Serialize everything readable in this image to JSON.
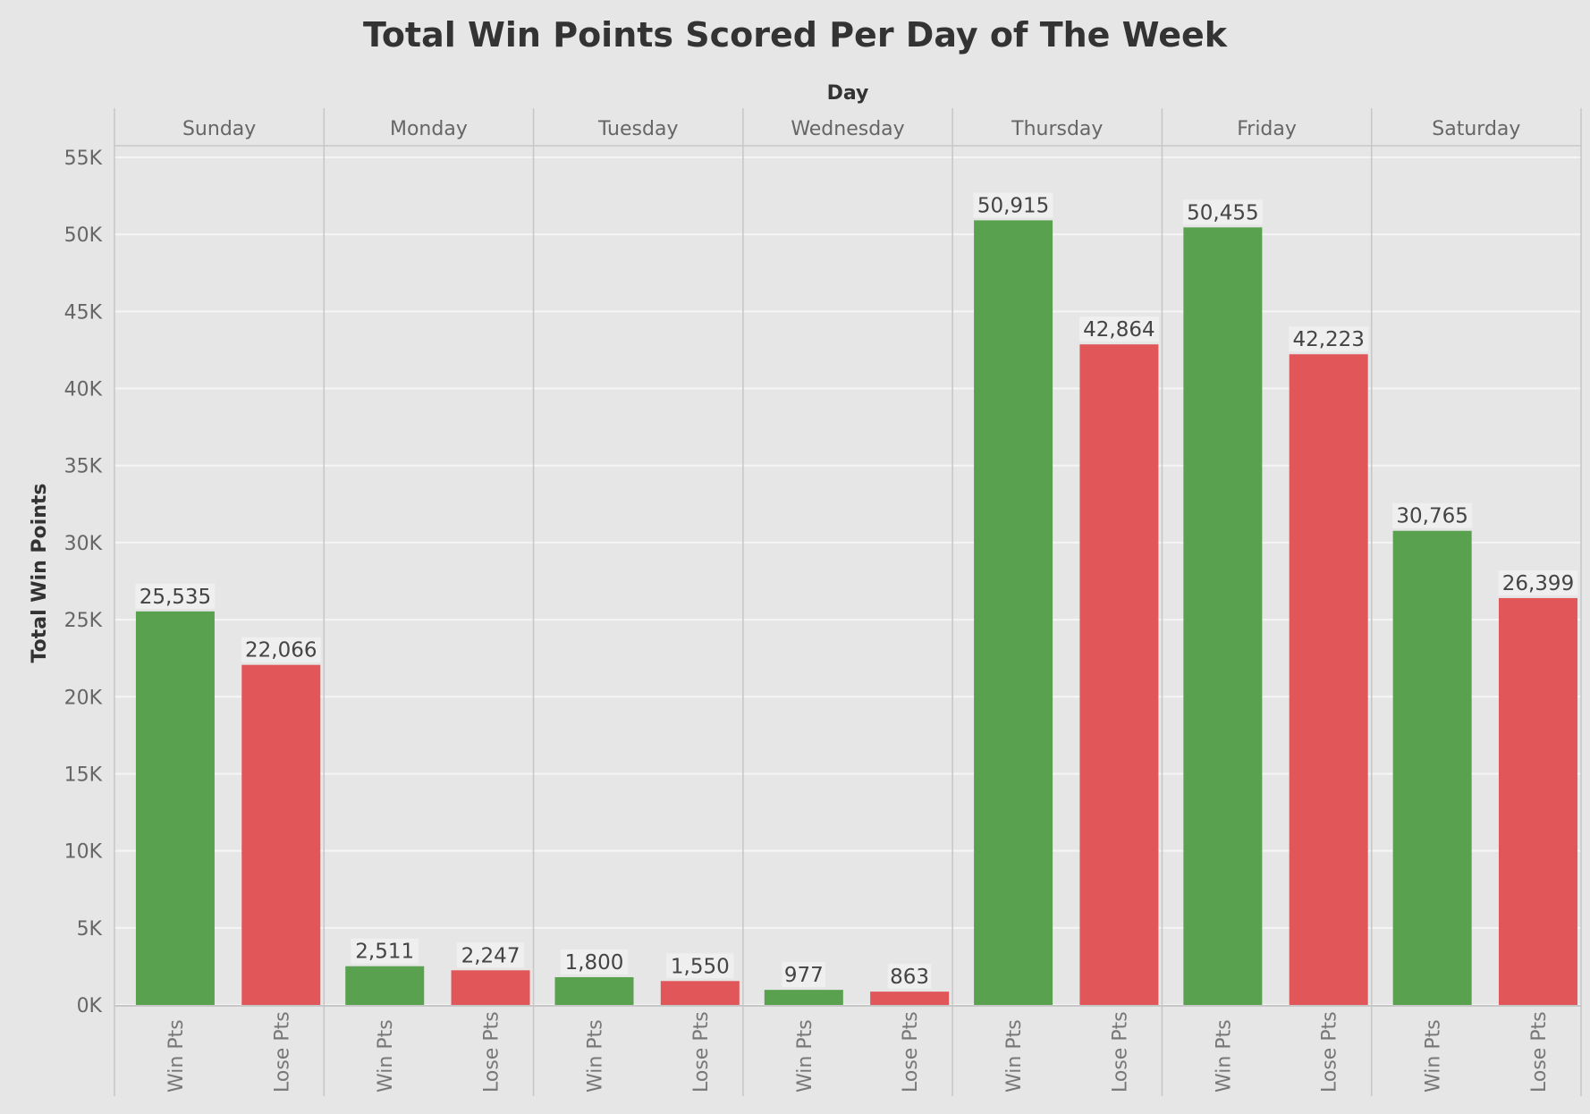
{
  "chart_data": {
    "type": "bar",
    "title": "Total Win Points Scored Per Day of The Week",
    "column_header": "Day",
    "ylabel": "Total Win Points",
    "ylim": [
      0,
      55000
    ],
    "y_ticks": [
      {
        "value": 0,
        "label": "0K"
      },
      {
        "value": 5000,
        "label": "5K"
      },
      {
        "value": 10000,
        "label": "10K"
      },
      {
        "value": 15000,
        "label": "15K"
      },
      {
        "value": 20000,
        "label": "20K"
      },
      {
        "value": 25000,
        "label": "25K"
      },
      {
        "value": 30000,
        "label": "30K"
      },
      {
        "value": 35000,
        "label": "35K"
      },
      {
        "value": 40000,
        "label": "40K"
      },
      {
        "value": 45000,
        "label": "45K"
      },
      {
        "value": 50000,
        "label": "50K"
      },
      {
        "value": 55000,
        "label": "55K"
      }
    ],
    "grid": true,
    "days": [
      "Sunday",
      "Monday",
      "Tuesday",
      "Wednesday",
      "Thursday",
      "Friday",
      "Saturday"
    ],
    "series": [
      {
        "name": "Win Pts",
        "color": "#59a14f",
        "values": [
          25535,
          2511,
          1800,
          977,
          50915,
          50455,
          30765
        ],
        "labels": [
          "25,535",
          "2,511",
          "1,800",
          "977",
          "50,915",
          "50,455",
          "30,765"
        ]
      },
      {
        "name": "Lose Pts",
        "color": "#e15759",
        "values": [
          22066,
          2247,
          1550,
          863,
          42864,
          42223,
          26399
        ],
        "labels": [
          "22,066",
          "2,247",
          "1,550",
          "863",
          "42,864",
          "42,223",
          "26,399"
        ]
      }
    ]
  }
}
